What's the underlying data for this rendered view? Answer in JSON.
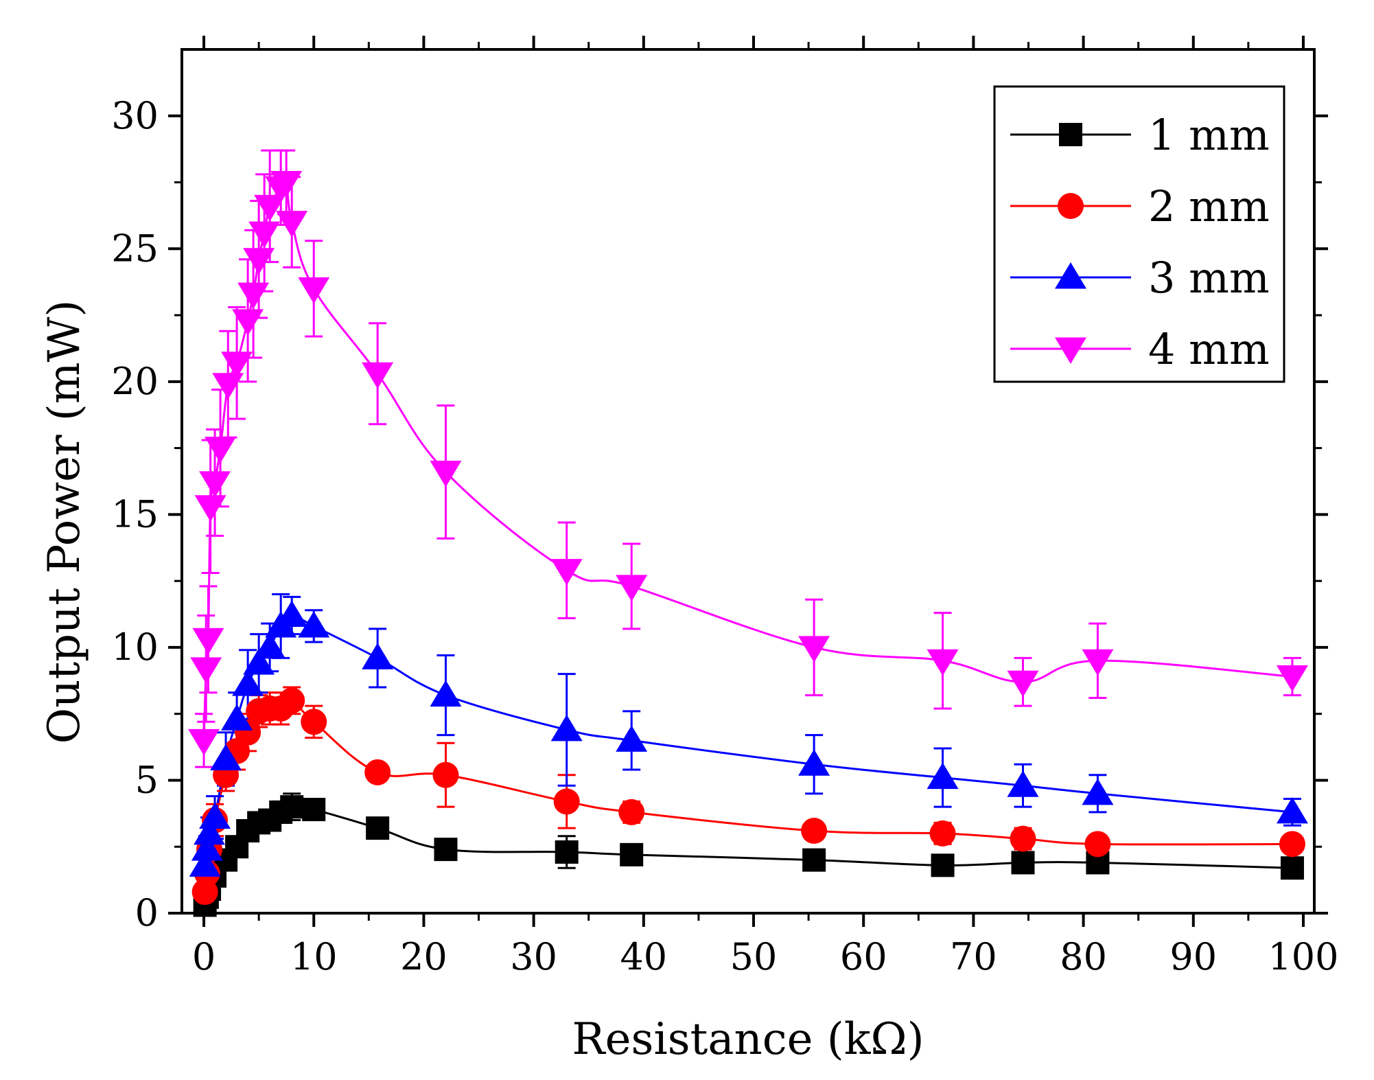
{
  "chart_data": {
    "type": "scatter",
    "title": "",
    "xlabel": "Resistance (kΩ)",
    "ylabel": "Output Power (mW)",
    "xlim": [
      -2,
      101
    ],
    "ylim": [
      0,
      32.5
    ],
    "x_ticks": [
      0,
      10,
      20,
      30,
      40,
      50,
      60,
      70,
      80,
      90,
      100
    ],
    "x_tick_labels": [
      "0",
      "10",
      "20",
      "30",
      "40",
      "50",
      "60",
      "70",
      "80",
      "90",
      "100"
    ],
    "y_ticks": [
      0,
      5,
      10,
      15,
      20,
      25,
      30
    ],
    "y_tick_labels": [
      "0",
      "5",
      "10",
      "15",
      "20",
      "25",
      "30"
    ],
    "legend_position": "top-right",
    "grid": false,
    "series": [
      {
        "name": "1 mm",
        "color": "#000000",
        "marker": "square",
        "x": [
          0.1,
          0.3,
          0.5,
          1,
          2,
          3,
          4,
          5,
          6,
          7,
          8,
          10,
          15.8,
          22,
          33,
          38.9,
          55.5,
          67.2,
          74.5,
          81.3,
          99
        ],
        "y": [
          0.3,
          0.6,
          0.9,
          1.4,
          2,
          2.5,
          3.1,
          3.4,
          3.5,
          3.8,
          4,
          3.9,
          3.2,
          2.4,
          2.3,
          2.2,
          2,
          1.8,
          1.9,
          1.9,
          1.7
        ],
        "err": [
          0,
          0,
          0,
          0,
          0.3,
          0.3,
          0.3,
          0.3,
          0.3,
          0.4,
          0.5,
          0,
          0,
          0,
          0.6,
          0,
          0,
          0,
          0,
          0,
          0
        ]
      },
      {
        "name": "2 mm",
        "color": "#ff0000",
        "marker": "circle",
        "x": [
          0.1,
          0.3,
          0.5,
          1,
          2,
          3,
          4,
          5,
          6,
          7,
          8,
          10,
          15.8,
          22,
          33,
          38.9,
          55.5,
          67.2,
          74.5,
          81.3,
          99
        ],
        "y": [
          0.8,
          1.5,
          2.4,
          3.5,
          5.2,
          6.1,
          6.8,
          7.6,
          7.7,
          7.7,
          8,
          7.2,
          5.3,
          5.2,
          4.2,
          3.8,
          3.1,
          3,
          2.8,
          2.6,
          2.6
        ],
        "err": [
          0.3,
          0.4,
          0.5,
          0.6,
          0.6,
          0.7,
          0.7,
          0.6,
          0.6,
          0.6,
          0.5,
          0.6,
          0,
          1.2,
          1,
          0.4,
          0.3,
          0.4,
          0.4,
          0,
          0
        ]
      },
      {
        "name": "3 mm",
        "color": "#0000ff",
        "marker": "triangle-up",
        "x": [
          0.1,
          0.3,
          0.5,
          1,
          2,
          3,
          4,
          5,
          6,
          7,
          8,
          10,
          15.8,
          22,
          33,
          38.9,
          55.5,
          67.2,
          74.5,
          81.3,
          99
        ],
        "y": [
          1.8,
          2.4,
          3,
          3.6,
          5.8,
          7.3,
          8.6,
          9.4,
          10,
          10.8,
          11.2,
          10.8,
          9.6,
          8.2,
          6.9,
          6.5,
          5.6,
          5.1,
          4.8,
          4.5,
          3.8
        ],
        "err": [
          0.4,
          0.5,
          0.6,
          0.8,
          1,
          1,
          1.3,
          1.1,
          0.9,
          1.2,
          0.7,
          0.6,
          1.1,
          1.5,
          2.1,
          1.1,
          1.1,
          1.1,
          0.8,
          0.7,
          0.5
        ]
      },
      {
        "name": "4 mm",
        "color": "#ff00ff",
        "marker": "triangle-down",
        "x": [
          0,
          0.2,
          0.4,
          0.6,
          1,
          1.5,
          2.2,
          3,
          4,
          4.5,
          5,
          5.5,
          6,
          7,
          7.5,
          8,
          10,
          15.8,
          22,
          33,
          38.9,
          55.5,
          67.2,
          74.5,
          81.3,
          99
        ],
        "y": [
          6.5,
          9.2,
          10.3,
          15.3,
          16.2,
          17.5,
          19.9,
          20.7,
          22.3,
          23.3,
          24.6,
          25.6,
          26.6,
          27.3,
          27.5,
          26,
          23.5,
          20.3,
          16.6,
          12.9,
          12.3,
          10,
          9.5,
          8.7,
          9.5,
          8.9
        ],
        "err": [
          1,
          2,
          2,
          2.5,
          2,
          2.2,
          2,
          2.1,
          2.3,
          2.4,
          2.2,
          2.2,
          2.1,
          1.4,
          1.2,
          1.7,
          1.8,
          1.9,
          2.5,
          1.8,
          1.6,
          1.8,
          1.8,
          0.9,
          1.4,
          0.7
        ]
      }
    ]
  }
}
